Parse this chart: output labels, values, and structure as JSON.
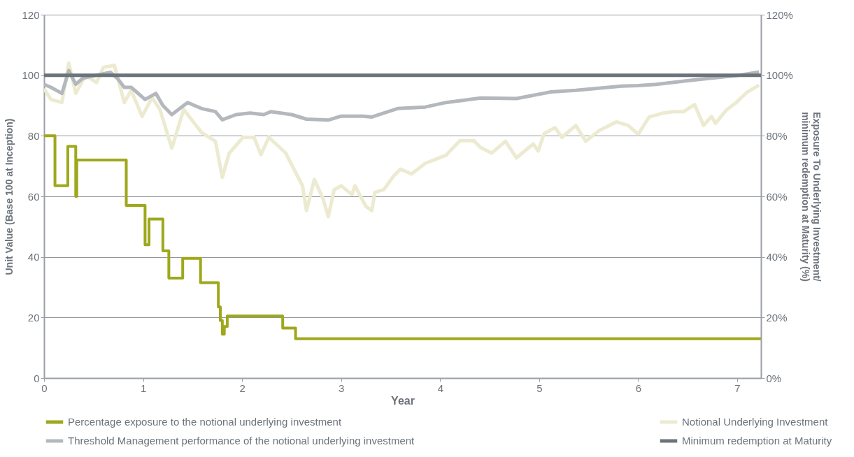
{
  "chart_data": {
    "type": "line",
    "xlabel": "Year",
    "ylabel": "Unit Value (Base 100 at Inception)",
    "y2label": "Exposure To Underlying Investment/ minimum redemption at Maturity (%)",
    "xlim": [
      0,
      7.24
    ],
    "xticks": [
      0,
      1,
      2,
      3,
      4,
      5,
      6,
      7
    ],
    "ylim": [
      0,
      120
    ],
    "yticks": [
      0,
      20,
      40,
      60,
      80,
      100,
      120
    ],
    "y2lim": [
      0,
      120
    ],
    "y2ticks": [
      {
        "value": 0,
        "label": "0%"
      },
      {
        "value": 20,
        "label": "20%"
      },
      {
        "value": 40,
        "label": "40%"
      },
      {
        "value": 60,
        "label": "60%"
      },
      {
        "value": 80,
        "label": "80%"
      },
      {
        "value": 100,
        "label": "100%"
      },
      {
        "value": 120,
        "label": "120%"
      }
    ],
    "grid": "y",
    "legend": "bottom",
    "line_style": "solid",
    "marker": "none",
    "series": [
      {
        "name": "Percentage exposure to the notional underlying investment",
        "type": "step",
        "axis": "y2",
        "color": "#9ea81c",
        "x": [
          0,
          0.11,
          0.24,
          0.32,
          0.33,
          0.83,
          1.02,
          1.06,
          1.2,
          1.26,
          1.4,
          1.58,
          1.76,
          1.78,
          1.8,
          1.82,
          1.85,
          2.41,
          2.54,
          7.24
        ],
        "values": [
          80,
          63.5,
          76.5,
          60,
          72,
          57,
          44,
          52.5,
          42,
          33,
          39.5,
          31.5,
          23.5,
          19,
          14.5,
          17,
          20.5,
          16.5,
          13,
          13
        ]
      },
      {
        "name": "Notional Underlying Investment",
        "type": "line",
        "color": "#ecebd1",
        "x": [
          0,
          0.07,
          0.18,
          0.25,
          0.32,
          0.42,
          0.53,
          0.6,
          0.71,
          0.81,
          0.88,
          0.99,
          1.09,
          1.17,
          1.29,
          1.41,
          1.59,
          1.73,
          1.8,
          1.87,
          2.01,
          2.12,
          2.19,
          2.27,
          2.44,
          2.61,
          2.65,
          2.73,
          2.82,
          2.87,
          2.93,
          3.0,
          3.11,
          3.14,
          3.25,
          3.31,
          3.34,
          3.43,
          3.53,
          3.6,
          3.71,
          3.85,
          4.06,
          4.2,
          4.34,
          4.41,
          4.52,
          4.66,
          4.77,
          4.94,
          4.99,
          5.05,
          5.16,
          5.23,
          5.37,
          5.47,
          5.61,
          5.78,
          5.9,
          6.0,
          6.11,
          6.25,
          6.36,
          6.46,
          6.57,
          6.66,
          6.74,
          6.78,
          6.89,
          6.99,
          7.1,
          7.22
        ],
        "values": [
          95.6,
          92,
          91,
          104,
          94,
          100,
          97.6,
          102.6,
          103.3,
          91,
          95,
          86.4,
          92.6,
          88.7,
          75.9,
          88.7,
          81.1,
          78.2,
          66.3,
          74.3,
          79.5,
          79.5,
          73.8,
          79.5,
          74.3,
          63.5,
          55.3,
          65.6,
          59,
          53.3,
          62.2,
          63.5,
          60.6,
          63.5,
          56.7,
          55.3,
          61.3,
          62.2,
          66.7,
          69,
          67.4,
          70.9,
          73.6,
          78.4,
          78.4,
          76.1,
          74.3,
          78.2,
          72.7,
          77.3,
          75,
          80.7,
          82.7,
          79.5,
          83.4,
          78.2,
          81.8,
          84.6,
          83.4,
          80.5,
          86.2,
          87.5,
          88,
          88,
          90.3,
          83.4,
          86.4,
          84.1,
          88.5,
          91,
          94.4,
          96.7
        ]
      },
      {
        "name": "Threshold Management performance of the notional underlying investment",
        "type": "line",
        "color": "#b4b8bc",
        "x": [
          0,
          0.07,
          0.18,
          0.25,
          0.32,
          0.39,
          0.53,
          0.67,
          0.74,
          0.81,
          0.88,
          0.95,
          1.02,
          1.13,
          1.2,
          1.29,
          1.41,
          1.45,
          1.59,
          1.73,
          1.8,
          1.94,
          2.08,
          2.22,
          2.29,
          2.5,
          2.65,
          2.87,
          3.0,
          3.22,
          3.31,
          3.57,
          3.85,
          4.06,
          4.41,
          4.77,
          5.12,
          5.37,
          5.83,
          6.0,
          6.18,
          6.53,
          7.0,
          7.22
        ],
        "values": [
          97,
          96,
          94,
          101.5,
          97,
          99,
          100,
          101,
          99,
          96,
          96,
          94,
          92,
          94,
          90,
          87,
          90,
          91,
          89,
          88,
          85.3,
          87,
          87.5,
          87,
          88,
          87,
          85.5,
          85.2,
          86.5,
          86.5,
          86.2,
          89,
          89.5,
          91,
          92.5,
          92.3,
          94.5,
          95,
          96.4,
          96.6,
          97,
          98.3,
          99.9,
          101.1
        ]
      },
      {
        "name": "Minimum redemption at Maturity",
        "type": "line",
        "color": "#6b737b",
        "x": [
          0,
          7.24
        ],
        "values": [
          100,
          100
        ]
      }
    ]
  }
}
